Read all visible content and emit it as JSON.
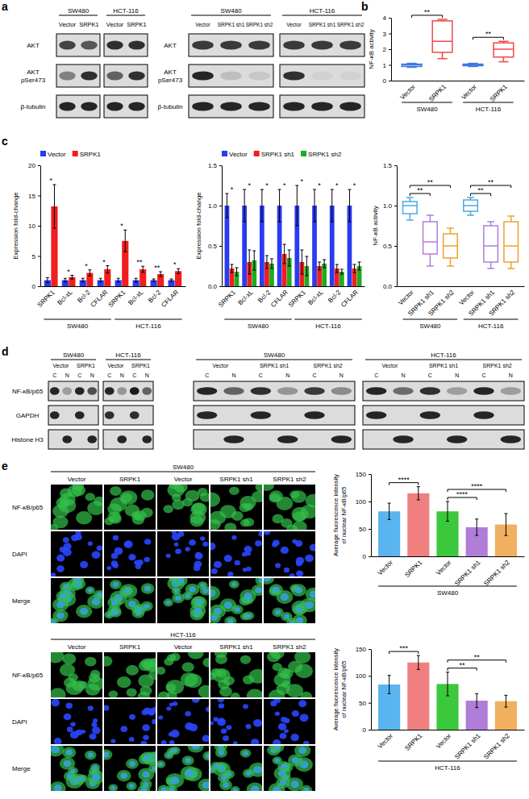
{
  "panel_labels": [
    "a",
    "b",
    "c",
    "d",
    "e"
  ],
  "blots": [
    {
      "groups": [
        {
          "name": "SW480",
          "conditions": [
            {
              "name": "Vector"
            },
            {
              "name": "SRPK1"
            }
          ]
        },
        {
          "name": "HCT-116",
          "conditions": [
            {
              "name": "Vector"
            },
            {
              "name": "SRPK1"
            }
          ]
        }
      ],
      "rows": [
        {
          "label": [
            "AKT"
          ],
          "bands": [
            0.75,
            0.65,
            0.85,
            0.85
          ]
        },
        {
          "label": [
            "AKT",
            "pSer473"
          ],
          "bands": [
            0.45,
            0.85,
            0.6,
            0.85
          ]
        },
        {
          "label": [
            "β-tubulin"
          ],
          "bands": [
            0.9,
            0.9,
            0.9,
            0.9
          ]
        }
      ]
    },
    {
      "groups": [
        {
          "name": "SW480",
          "conditions": [
            {
              "name": "Vector"
            },
            {
              "name": "SRPK1 sh1"
            },
            {
              "name": "SRPK1 sh2"
            }
          ]
        },
        {
          "name": "HCT-116",
          "conditions": [
            {
              "name": "Vector"
            },
            {
              "name": "SRPK1 sh1"
            },
            {
              "name": "SRPK1 sh2"
            }
          ]
        }
      ],
      "rows": [
        {
          "label": [
            "AKT"
          ],
          "bands": [
            0.8,
            0.8,
            0.8,
            0.8,
            0.8,
            0.8
          ]
        },
        {
          "label": [
            "AKT",
            "pSer473"
          ],
          "bands": [
            0.9,
            0.15,
            0.1,
            0.85,
            0.05,
            0.05
          ]
        },
        {
          "label": [
            "β-tubulin"
          ],
          "bands": [
            0.9,
            0.9,
            0.9,
            0.9,
            0.9,
            0.9
          ]
        }
      ]
    },
    {
      "groups": [
        {
          "name": "SW480",
          "conditions": [
            {
              "name": "Vector",
              "lanes": [
                "C",
                "N"
              ]
            },
            {
              "name": "SRPK1",
              "lanes": [
                "C",
                "N"
              ]
            }
          ]
        },
        {
          "name": "HCT-116",
          "conditions": [
            {
              "name": "Vector",
              "lanes": [
                "C",
                "N"
              ]
            },
            {
              "name": "SRPK1",
              "lanes": [
                "C",
                "N"
              ]
            }
          ]
        }
      ],
      "rows": [
        {
          "label": [
            "NF-κB/p65"
          ],
          "bands": [
            0.9,
            0.3,
            0.9,
            0.7,
            0.9,
            0.35,
            0.95,
            0.6
          ]
        },
        {
          "label": [
            "GAPDH"
          ],
          "bands": [
            0.9,
            null,
            0.9,
            null,
            0.85,
            null,
            0.85,
            null
          ]
        },
        {
          "label": [
            "Histone H3"
          ],
          "bands": [
            null,
            0.9,
            null,
            0.9,
            null,
            0.9,
            null,
            0.9
          ]
        }
      ]
    },
    {
      "groups": [
        {
          "name": "SW480",
          "conditions": [
            {
              "name": "Vector",
              "lanes": [
                "C",
                "N"
              ]
            },
            {
              "name": "SRPK1 sh1",
              "lanes": [
                "C",
                "N"
              ]
            },
            {
              "name": "SRPK1 sh2",
              "lanes": [
                "C",
                "N"
              ]
            }
          ]
        },
        {
          "name": "HCT-116",
          "conditions": [
            {
              "name": "Vector",
              "lanes": [
                "C",
                "N"
              ]
            },
            {
              "name": "SRPK1 sh1",
              "lanes": [
                "C",
                "N"
              ]
            },
            {
              "name": "SRPK1 sh2",
              "lanes": [
                "C",
                "N"
              ]
            }
          ]
        }
      ],
      "rows": [
        {
          "bands": [
            0.9,
            0.6,
            0.85,
            0.35,
            0.8,
            0.4,
            0.9,
            0.55,
            0.85,
            0.3,
            0.9,
            0.3
          ]
        },
        {
          "bands": [
            0.9,
            null,
            0.9,
            null,
            0.9,
            null,
            0.9,
            null,
            0.9,
            null,
            0.9,
            null
          ]
        },
        {
          "bands": [
            null,
            0.9,
            null,
            0.9,
            null,
            0.9,
            null,
            0.9,
            null,
            0.9,
            null,
            0.9
          ]
        }
      ]
    }
  ],
  "chart_data": [
    {
      "type": "box",
      "ylabel": [
        "NF-κB activity"
      ],
      "groups": [
        {
          "name": "SW480",
          "categories": [
            "Vector",
            "SRPK1"
          ]
        },
        {
          "name": "HCT-116",
          "categories": [
            "Vector",
            "SRPK1"
          ]
        }
      ],
      "boxes": [
        {
          "min": 0.85,
          "q1": 0.9,
          "median": 1.0,
          "q3": 1.05,
          "max": 1.1
        },
        {
          "min": 1.4,
          "q1": 1.8,
          "median": 2.5,
          "q3": 3.8,
          "max": 3.9
        },
        {
          "min": 0.9,
          "q1": 0.95,
          "median": 1.0,
          "q3": 1.05,
          "max": 1.1
        },
        {
          "min": 1.2,
          "q1": 1.5,
          "median": 2.0,
          "q3": 2.4,
          "max": 2.5
        }
      ],
      "colors": [
        "#3f78e0",
        "#f04848",
        "#3f78e0",
        "#f04848"
      ],
      "ylim": [
        0,
        4
      ],
      "yticks": [
        0,
        1,
        2,
        3,
        4
      ],
      "significance": [
        {
          "from": 0,
          "to": 1,
          "label": "**"
        },
        {
          "from": 2,
          "to": 3,
          "label": "**"
        }
      ]
    },
    {
      "type": "bar",
      "ylabel": [
        "Expression fold-change"
      ],
      "groups": [
        {
          "name": "SW480",
          "categories": [
            "SRPK1",
            "Bcl-xL",
            "Bcl-2",
            "CFLAR"
          ]
        },
        {
          "name": "HCT-116",
          "categories": [
            "SRPK1",
            "Bcl-xL",
            "Bcl-2",
            "CFLAR"
          ]
        }
      ],
      "series": [
        {
          "name": "Vector",
          "color": "#2a3bf0",
          "values": [
            1,
            1,
            1,
            1,
            1,
            1,
            1,
            1
          ],
          "errors": [
            0.4,
            0.3,
            0.3,
            0.3,
            0.3,
            0.3,
            0.2,
            0.2
          ]
        },
        {
          "name": "SRPK1",
          "color": "#f01e1e",
          "values": [
            13.2,
            1.5,
            2.2,
            2.8,
            7.5,
            2.8,
            2.0,
            2.5
          ],
          "errors": [
            3.6,
            0.3,
            0.5,
            0.6,
            1.8,
            0.5,
            0.4,
            0.4
          ]
        }
      ],
      "ylim": [
        0,
        20
      ],
      "yticks": [
        0,
        5,
        10,
        15,
        20
      ],
      "legend": "top",
      "significance": [
        "*",
        "*",
        "*",
        "*",
        "*",
        "**",
        "**",
        "*"
      ]
    },
    {
      "type": "bar",
      "ylabel": [
        "Expression fold-change"
      ],
      "groups": [
        {
          "name": "SW480",
          "categories": [
            "SRPK1",
            "Bcl-xL",
            "Bcl-2",
            "CFLAR"
          ]
        },
        {
          "name": "HCT-116",
          "categories": [
            "SRPK1",
            "Bcl-xL",
            "Bcl-2",
            "CFLAR"
          ]
        }
      ],
      "series": [
        {
          "name": "Vector",
          "color": "#2a3bf0",
          "values": [
            1,
            1,
            1,
            1,
            1,
            1,
            1,
            1
          ],
          "errors": [
            0.15,
            0.2,
            0.2,
            0.2,
            0.25,
            0.2,
            0.2,
            0.2
          ]
        },
        {
          "name": "SRPK1 sh1",
          "color": "#f01e1e",
          "values": [
            0.22,
            0.3,
            0.3,
            0.4,
            0.3,
            0.25,
            0.22,
            0.22
          ],
          "errors": [
            0.05,
            0.15,
            0.08,
            0.12,
            0.15,
            0.05,
            0.05,
            0.05
          ]
        },
        {
          "name": "SRPK1 sh2",
          "color": "#1faa1f",
          "values": [
            0.18,
            0.32,
            0.28,
            0.35,
            0.25,
            0.28,
            0.18,
            0.25
          ],
          "errors": [
            0.05,
            0.12,
            0.06,
            0.1,
            0.12,
            0.05,
            0.03,
            0.05
          ]
        }
      ],
      "ylim": [
        0,
        1.5
      ],
      "yticks": [
        {
          "value": 0,
          "label": "0.0"
        },
        0.5,
        {
          "value": 1,
          "label": "1.0"
        },
        1.5
      ],
      "legend": "top",
      "significance": [
        "*",
        "*",
        "*",
        "*",
        "*",
        "*",
        "*",
        "*"
      ]
    },
    {
      "type": "box",
      "ylabel": [
        "NF-κB activity"
      ],
      "groups": [
        {
          "name": "SW480",
          "categories": [
            "Vector",
            "SRPK1 sh1",
            "SRPK1 sh2"
          ]
        },
        {
          "name": "HCT-116",
          "categories": [
            "Vector",
            "SRPK1 sh1",
            "SRPK1 sh2"
          ]
        }
      ],
      "boxes": [
        {
          "min": 0.82,
          "q1": 0.9,
          "median": 1.0,
          "q3": 1.05,
          "max": 1.1
        },
        {
          "min": 0.25,
          "q1": 0.4,
          "median": 0.55,
          "q3": 0.8,
          "max": 0.88
        },
        {
          "min": 0.25,
          "q1": 0.35,
          "median": 0.5,
          "q3": 0.65,
          "max": 0.72
        },
        {
          "min": 0.88,
          "q1": 0.93,
          "median": 1.0,
          "q3": 1.07,
          "max": 1.1
        },
        {
          "min": 0.22,
          "q1": 0.3,
          "median": 0.5,
          "q3": 0.75,
          "max": 0.8
        },
        {
          "min": 0.22,
          "q1": 0.3,
          "median": 0.5,
          "q3": 0.8,
          "max": 0.87
        }
      ],
      "colors": [
        "#4aa8e8",
        "#b07ed8",
        "#f0a030",
        "#4aa8e8",
        "#b07ed8",
        "#f0a030"
      ],
      "ylim": [
        0,
        1.5
      ],
      "yticks": [
        {
          "value": 0,
          "label": "0.0"
        },
        0.5,
        {
          "value": 1,
          "label": "1.0"
        },
        1.5
      ],
      "significance": [
        {
          "from": 0,
          "to": 1,
          "label": "**"
        },
        {
          "from": 0,
          "to": 2,
          "label": "**"
        },
        {
          "from": 3,
          "to": 4,
          "label": "**"
        },
        {
          "from": 3,
          "to": 5,
          "label": "**"
        }
      ]
    },
    {
      "type": "bar",
      "ylabel": [
        "Average fluorescence intensity",
        "of nuclear NF-κB/p65"
      ],
      "groups": [
        {
          "name": "SW480",
          "categories": [
            "Vector",
            "SRPK1",
            "Vector",
            "SRPK1 sh1",
            "SRPK1 sh2"
          ]
        }
      ],
      "values": [
        82,
        115,
        82,
        53,
        58
      ],
      "errors": [
        15,
        12,
        18,
        15,
        20
      ],
      "colors": [
        "#5ab4f0",
        "#f08080",
        "#3cc83c",
        "#b07ed8",
        "#f0b060"
      ],
      "ylim": [
        0,
        150
      ],
      "yticks": [
        0,
        50,
        100,
        150
      ],
      "significance": [
        {
          "from": 0,
          "to": 1,
          "label": "****"
        },
        {
          "from": 2,
          "to": 3,
          "label": "****"
        },
        {
          "from": 2,
          "to": 4,
          "label": "****"
        }
      ]
    },
    {
      "type": "bar",
      "ylabel": [
        "Average fluorescence intensity",
        "of nuclear NF-κB/p65"
      ],
      "groups": [
        {
          "name": "HCT-116",
          "categories": [
            "Vector",
            "SRPK1",
            "Vector",
            "SRPK1 sh1",
            "SRPK1 sh2"
          ]
        }
      ],
      "values": [
        84,
        125,
        85,
        54,
        53
      ],
      "errors": [
        17,
        13,
        22,
        13,
        11
      ],
      "colors": [
        "#5ab4f0",
        "#f08080",
        "#3cc83c",
        "#b07ed8",
        "#f0b060"
      ],
      "ylim": [
        0,
        150
      ],
      "yticks": [
        0,
        50,
        100,
        150
      ],
      "significance": [
        {
          "from": 0,
          "to": 1,
          "label": "***"
        },
        {
          "from": 2,
          "to": 3,
          "label": "**"
        },
        {
          "from": 2,
          "to": 4,
          "label": "**"
        }
      ]
    }
  ],
  "micrographs": [
    {
      "groups": [
        {
          "name": "SW480",
          "columns": [
            "Vector",
            "SRPK1",
            "Vector",
            "SRPK1 sh1",
            "SRPK1 sh2"
          ]
        }
      ],
      "rows": [
        "NF-κB/p65",
        "DAPI",
        "Merge"
      ]
    },
    {
      "groups": [
        {
          "name": "HCT-116",
          "columns": [
            "Vector",
            "SRPK1",
            "Vector",
            "SRPK1 sh1",
            "SRPK1 sh2"
          ]
        }
      ],
      "rows": [
        "NF-κB/p65",
        "DAPI",
        "Merge"
      ]
    }
  ]
}
